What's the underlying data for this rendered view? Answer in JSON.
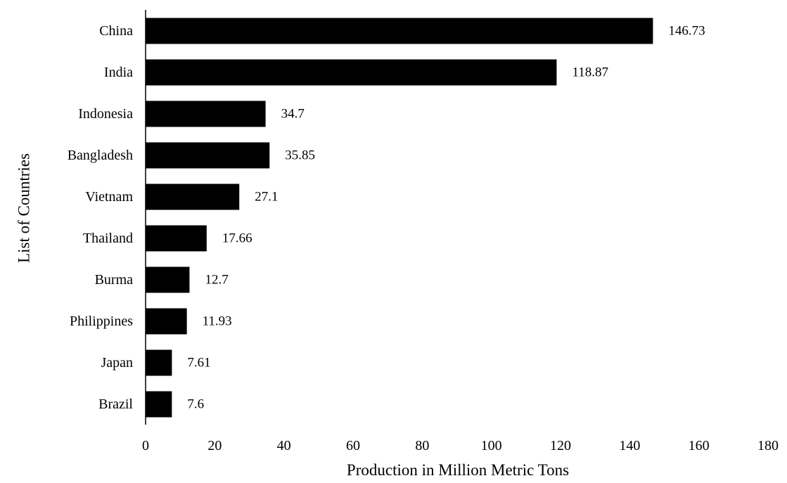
{
  "chart_data": {
    "type": "bar",
    "orientation": "horizontal",
    "categories": [
      "China",
      "India",
      "Indonesia",
      "Bangladesh",
      "Vietnam",
      "Thailand",
      "Burma",
      "Philippines",
      "Japan",
      "Brazil"
    ],
    "values": [
      146.73,
      118.87,
      34.7,
      35.85,
      27.1,
      17.66,
      12.7,
      11.93,
      7.61,
      7.6
    ],
    "data_labels": [
      "146.73",
      "118.87",
      "34.7",
      "35.85",
      "27.1",
      "17.66",
      "12.7",
      "11.93",
      "7.61",
      "7.6"
    ],
    "xlabel": "Production in Million Metric Tons",
    "ylabel": "List of Countries",
    "xlim": [
      0,
      180
    ],
    "xticks": [
      0,
      20,
      40,
      60,
      80,
      100,
      120,
      140,
      160,
      180
    ],
    "grid": false,
    "bar_color": "#000000"
  }
}
